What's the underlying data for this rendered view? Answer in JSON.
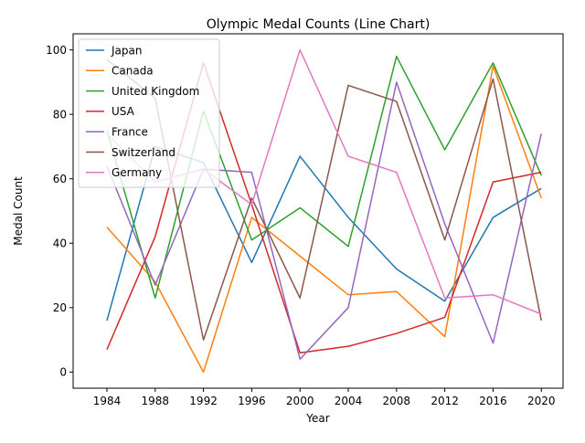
{
  "chart_data": {
    "type": "line",
    "title": "Olympic Medal Counts (Line Chart)",
    "xlabel": "Year",
    "ylabel": "Medal Count",
    "x": [
      1984,
      1988,
      1992,
      1996,
      2000,
      2004,
      2008,
      2012,
      2016,
      2020
    ],
    "xlim": [
      1981.2,
      2021.8
    ],
    "ylim": [
      -5,
      105
    ],
    "yticks": [
      0,
      20,
      40,
      60,
      80,
      100
    ],
    "grid": false,
    "legend_position": "top-left",
    "series": [
      {
        "name": "Japan",
        "color": "#1f77b4",
        "values": [
          16,
          70,
          65,
          34,
          67,
          48,
          32,
          22,
          48,
          57
        ]
      },
      {
        "name": "Canada",
        "color": "#ff7f0e",
        "values": [
          45,
          28,
          0,
          48,
          36,
          24,
          25,
          11,
          95,
          54
        ]
      },
      {
        "name": "United Kingdom",
        "color": "#2ca02c",
        "values": [
          75,
          23,
          81,
          41,
          51,
          39,
          98,
          69,
          96,
          61
        ]
      },
      {
        "name": "USA",
        "color": "#d62728",
        "values": [
          7,
          42,
          96,
          52,
          6,
          8,
          12,
          17,
          59,
          62
        ]
      },
      {
        "name": "France",
        "color": "#9467bd",
        "values": [
          64,
          27,
          63,
          62,
          4,
          20,
          90,
          46,
          9,
          74
        ]
      },
      {
        "name": "Switzerland",
        "color": "#8c564b",
        "values": [
          97,
          85,
          10,
          54,
          23,
          89,
          84,
          41,
          91,
          16
        ]
      },
      {
        "name": "Germany",
        "color": "#e377c2",
        "values": [
          74,
          59,
          63,
          52,
          100,
          67,
          62,
          23,
          24,
          18
        ]
      }
    ]
  }
}
